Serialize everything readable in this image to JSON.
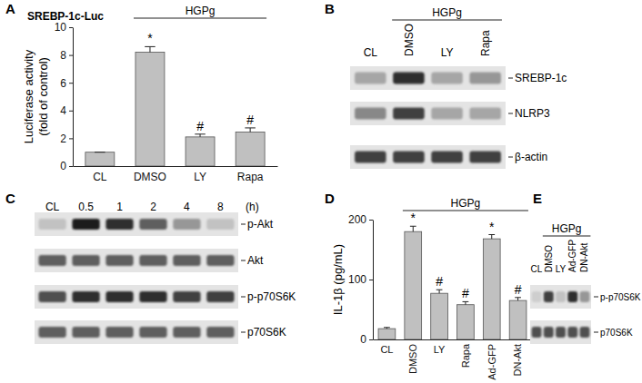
{
  "chart_data": [
    {
      "panel": "A",
      "type": "bar",
      "title": "SREBP-1c-Luc",
      "ylabel": [
        "Luciferase activity",
        "(fold of control)"
      ],
      "categories": [
        "CL",
        "DMSO",
        "LY",
        "Rapa"
      ],
      "values": [
        1,
        8.2,
        2.1,
        2.45
      ],
      "errors": [
        0,
        0.4,
        0.2,
        0.3
      ],
      "annotations": [
        null,
        "*",
        "#",
        "#"
      ],
      "groups": [
        {
          "label": "HGPg",
          "from": 1,
          "to": 3
        }
      ],
      "color": "#c0c0c0",
      "ylim": [
        0,
        10
      ],
      "yticks": [
        0,
        2,
        4,
        6,
        8,
        10
      ]
    },
    {
      "panel": "B",
      "type": "blot",
      "lanes": [
        "CL",
        "DMSO",
        "LY",
        "Rapa"
      ],
      "groups": [
        {
          "label": "HGPg",
          "from": 1,
          "to": 3
        }
      ],
      "rows": [
        {
          "name": "SREBP-1c",
          "intensities": [
            0.45,
            0.85,
            0.45,
            0.5
          ]
        },
        {
          "name": "NLRP3",
          "intensities": [
            0.55,
            0.8,
            0.45,
            0.45
          ]
        },
        {
          "name": "β-actin",
          "intensities": [
            0.8,
            0.8,
            0.8,
            0.8
          ]
        }
      ]
    },
    {
      "panel": "C",
      "type": "blot",
      "lanes": [
        "CL",
        "0.5",
        "1",
        "2",
        "4",
        "8"
      ],
      "lane_unit": "(h)",
      "rows": [
        {
          "name": "p-Akt",
          "intensities": [
            0.35,
            0.9,
            0.85,
            0.7,
            0.5,
            0.35
          ]
        },
        {
          "name": "Akt",
          "intensities": [
            0.7,
            0.7,
            0.7,
            0.7,
            0.7,
            0.7
          ]
        },
        {
          "name": "p-p70S6K",
          "intensities": [
            0.75,
            0.85,
            0.85,
            0.85,
            0.8,
            0.8
          ]
        },
        {
          "name": "p70S6K",
          "intensities": [
            0.7,
            0.7,
            0.7,
            0.7,
            0.7,
            0.7
          ]
        }
      ]
    },
    {
      "panel": "D",
      "type": "bar",
      "ylabel": [
        "IL-1β (pg/mL)"
      ],
      "categories": [
        "CL",
        "DMSO",
        "LY",
        "Rapa",
        "Ad-GFP",
        "DN-Akt"
      ],
      "values": [
        18,
        180,
        77,
        58,
        168,
        65
      ],
      "errors": [
        2,
        9,
        6,
        5,
        7,
        5
      ],
      "annotations": [
        null,
        "*",
        "#",
        "#",
        "*",
        "#"
      ],
      "groups": [
        {
          "label": "HGPg",
          "from": 1,
          "to": 5
        }
      ],
      "color": "#c0c0c0",
      "ylim": [
        0,
        200
      ],
      "yticks": [
        0,
        100,
        200
      ]
    },
    {
      "panel": "E",
      "type": "blot",
      "lanes": [
        "CL",
        "DMSO",
        "LY",
        "Ad-GFP",
        "DN-Akt"
      ],
      "groups": [
        {
          "label": "HGPg",
          "from": 1,
          "to": 4
        }
      ],
      "rows": [
        {
          "name": "p-p70S6K",
          "intensities": [
            0.3,
            0.8,
            0.35,
            0.85,
            0.5
          ]
        },
        {
          "name": "p70S6K",
          "intensities": [
            0.75,
            0.75,
            0.75,
            0.75,
            0.75
          ]
        }
      ]
    }
  ]
}
